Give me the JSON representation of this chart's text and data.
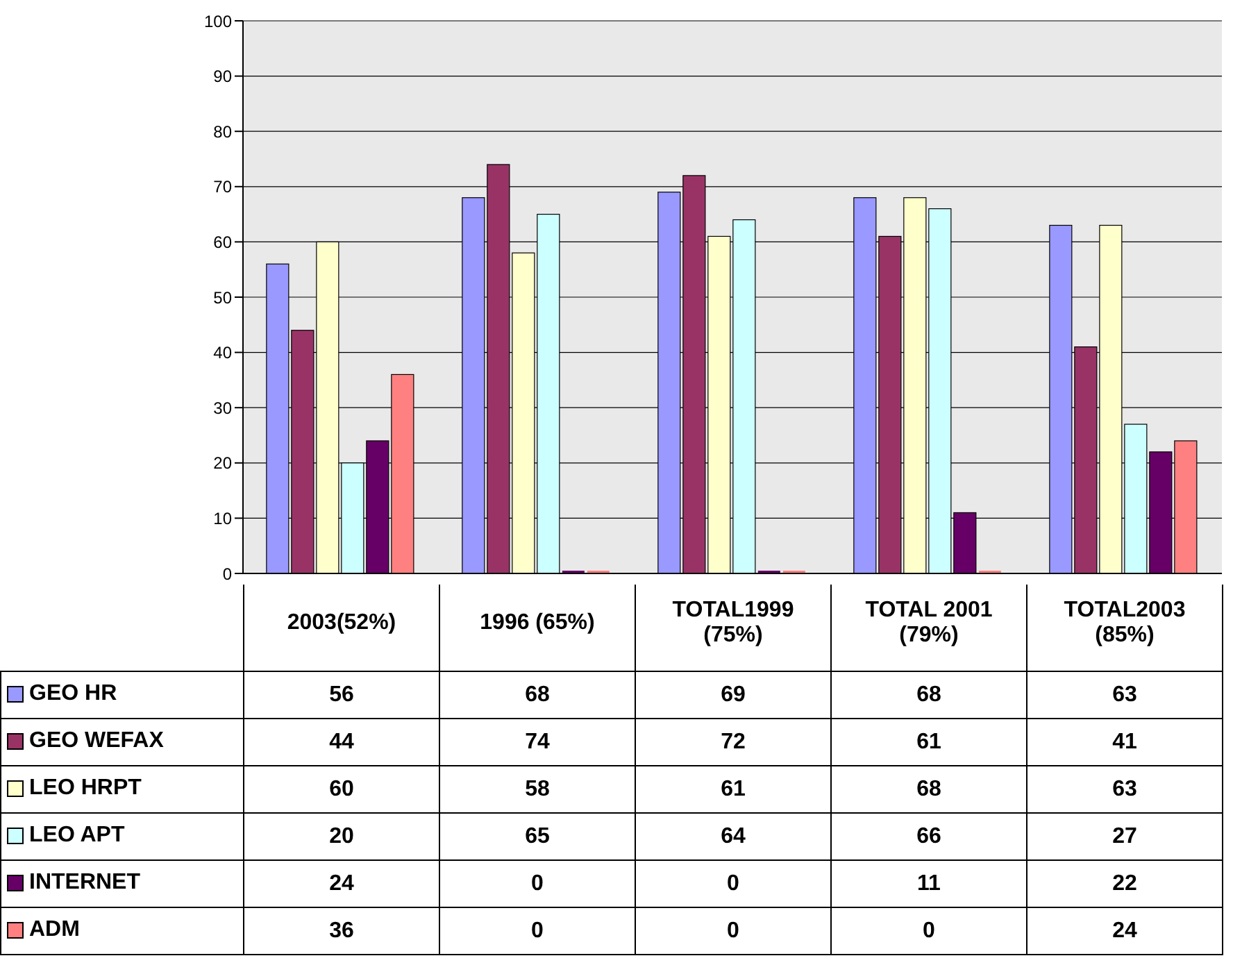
{
  "chart_data": {
    "type": "bar",
    "categories": [
      "2003(52%)",
      "1996 (65%)",
      "TOTAL1999 (75%)",
      "TOTAL 2001 (79%)",
      "TOTAL2003 (85%)"
    ],
    "series": [
      {
        "name": "GEO HR",
        "color": "#9999ff",
        "values": [
          56,
          68,
          69,
          68,
          63
        ]
      },
      {
        "name": "GEO WEFAX",
        "color": "#993366",
        "values": [
          44,
          74,
          72,
          61,
          41
        ]
      },
      {
        "name": "LEO HRPT",
        "color": "#ffffcc",
        "values": [
          60,
          58,
          61,
          68,
          63
        ]
      },
      {
        "name": "LEO APT",
        "color": "#ccffff",
        "values": [
          20,
          65,
          64,
          66,
          27
        ]
      },
      {
        "name": "INTERNET",
        "color": "#660066",
        "values": [
          24,
          0,
          0,
          11,
          22
        ]
      },
      {
        "name": "ADM",
        "color": "#ff8080",
        "values": [
          36,
          0,
          0,
          0,
          24
        ]
      }
    ],
    "ylim": [
      0,
      100
    ],
    "yticks": [
      0,
      10,
      20,
      30,
      40,
      50,
      60,
      70,
      80,
      90,
      100
    ],
    "grid": "y",
    "legend": "bottom",
    "data_labels": true
  }
}
